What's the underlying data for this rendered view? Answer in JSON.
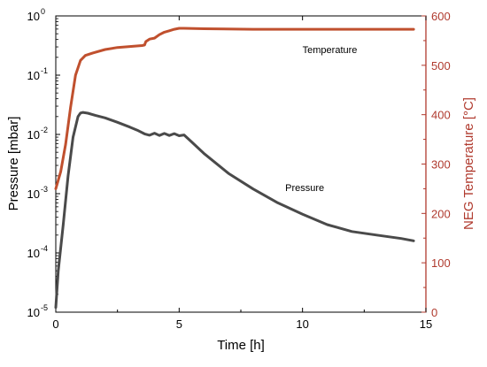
{
  "chart_data": {
    "type": "line",
    "title": "",
    "xlabel": "Time [h]",
    "ylabel_left": "Pressure [mbar]",
    "ylabel_right": "NEG Temperature [°C]",
    "xlim": [
      0,
      15
    ],
    "ylim_left": [
      1e-05,
      1
    ],
    "yscale_left": "log",
    "ylim_right": [
      0,
      600
    ],
    "grid": false,
    "x_ticks": [
      {
        "value": 0,
        "label": "0"
      },
      {
        "value": 5,
        "label": "5"
      },
      {
        "value": 10,
        "label": "10"
      },
      {
        "value": 15,
        "label": "15"
      }
    ],
    "y_left_ticks": [
      {
        "value": 1e-05,
        "base": "10",
        "exp": "-5"
      },
      {
        "value": 0.0001,
        "base": "10",
        "exp": "-4"
      },
      {
        "value": 0.001,
        "base": "10",
        "exp": "-3"
      },
      {
        "value": 0.01,
        "base": "10",
        "exp": "-2"
      },
      {
        "value": 0.1,
        "base": "10",
        "exp": "-1"
      },
      {
        "value": 1,
        "base": "10",
        "exp": "0"
      }
    ],
    "y_right_ticks": [
      {
        "value": 0,
        "label": "0"
      },
      {
        "value": 100,
        "label": "100"
      },
      {
        "value": 200,
        "label": "200"
      },
      {
        "value": 300,
        "label": "300"
      },
      {
        "value": 400,
        "label": "400"
      },
      {
        "value": 500,
        "label": "500"
      },
      {
        "value": 600,
        "label": "600"
      }
    ],
    "colors": {
      "pressure": "#4a4a4a",
      "temperature": "#c0502e",
      "right_axis": "#b03a2e"
    },
    "annotations": [
      {
        "text": "Temperature",
        "x": 10,
        "y_right": 525
      },
      {
        "text": "Pressure",
        "x": 9.3,
        "y_left": 0.0011
      }
    ],
    "series": [
      {
        "key": "temperature",
        "axis": "right",
        "x": [
          0,
          0.2,
          0.4,
          0.6,
          0.8,
          1.0,
          1.2,
          1.5,
          2.0,
          2.5,
          3.0,
          3.5,
          3.6,
          3.65,
          3.8,
          4.0,
          4.2,
          4.4,
          4.6,
          4.8,
          5.0,
          5.2,
          6,
          8,
          10,
          12,
          14.5
        ],
        "y": [
          250,
          285,
          340,
          415,
          480,
          510,
          520,
          525,
          532,
          536,
          538,
          540,
          541,
          548,
          553,
          555,
          562,
          567,
          570,
          573,
          575,
          575,
          574,
          573,
          573,
          573,
          573
        ]
      },
      {
        "key": "pressure",
        "axis": "left",
        "x": [
          0,
          0.1,
          0.3,
          0.5,
          0.7,
          0.9,
          1.0,
          1.1,
          1.3,
          1.6,
          2.0,
          2.5,
          3.0,
          3.3,
          3.6,
          3.8,
          4.0,
          4.2,
          4.4,
          4.6,
          4.8,
          5.0,
          5.2,
          5.5,
          6.0,
          7.0,
          8.0,
          9.0,
          10.0,
          11.0,
          12.0,
          13.0,
          14.0,
          14.5
        ],
        "y": [
          1.2e-05,
          5e-05,
          0.0003,
          0.002,
          0.009,
          0.02,
          0.023,
          0.0235,
          0.0228,
          0.021,
          0.019,
          0.016,
          0.0133,
          0.0118,
          0.0102,
          0.0097,
          0.0105,
          0.0096,
          0.0104,
          0.0096,
          0.0103,
          0.0095,
          0.0098,
          0.0075,
          0.0048,
          0.0022,
          0.0012,
          0.0007,
          0.00045,
          0.0003,
          0.00023,
          0.0002,
          0.000175,
          0.00016
        ]
      }
    ]
  }
}
